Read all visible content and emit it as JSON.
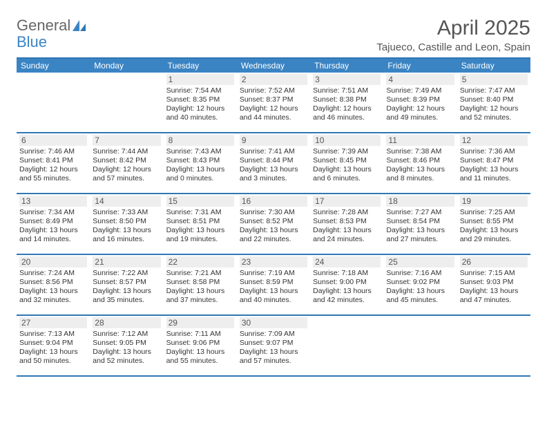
{
  "logo": {
    "text_gray": "General",
    "text_blue": "Blue"
  },
  "title": "April 2025",
  "location": "Tajueco, Castille and Leon, Spain",
  "colors": {
    "header_bg": "#3b84c4",
    "header_border": "#2f76b5",
    "daynum_bg": "#eeeeee",
    "text": "#333333",
    "title_text": "#555555"
  },
  "weekdays": [
    "Sunday",
    "Monday",
    "Tuesday",
    "Wednesday",
    "Thursday",
    "Friday",
    "Saturday"
  ],
  "weeks": [
    [
      null,
      null,
      {
        "d": "1",
        "sr": "7:54 AM",
        "ss": "8:35 PM",
        "dl": "12 hours and 40 minutes."
      },
      {
        "d": "2",
        "sr": "7:52 AM",
        "ss": "8:37 PM",
        "dl": "12 hours and 44 minutes."
      },
      {
        "d": "3",
        "sr": "7:51 AM",
        "ss": "8:38 PM",
        "dl": "12 hours and 46 minutes."
      },
      {
        "d": "4",
        "sr": "7:49 AM",
        "ss": "8:39 PM",
        "dl": "12 hours and 49 minutes."
      },
      {
        "d": "5",
        "sr": "7:47 AM",
        "ss": "8:40 PM",
        "dl": "12 hours and 52 minutes."
      }
    ],
    [
      {
        "d": "6",
        "sr": "7:46 AM",
        "ss": "8:41 PM",
        "dl": "12 hours and 55 minutes."
      },
      {
        "d": "7",
        "sr": "7:44 AM",
        "ss": "8:42 PM",
        "dl": "12 hours and 57 minutes."
      },
      {
        "d": "8",
        "sr": "7:43 AM",
        "ss": "8:43 PM",
        "dl": "13 hours and 0 minutes."
      },
      {
        "d": "9",
        "sr": "7:41 AM",
        "ss": "8:44 PM",
        "dl": "13 hours and 3 minutes."
      },
      {
        "d": "10",
        "sr": "7:39 AM",
        "ss": "8:45 PM",
        "dl": "13 hours and 6 minutes."
      },
      {
        "d": "11",
        "sr": "7:38 AM",
        "ss": "8:46 PM",
        "dl": "13 hours and 8 minutes."
      },
      {
        "d": "12",
        "sr": "7:36 AM",
        "ss": "8:47 PM",
        "dl": "13 hours and 11 minutes."
      }
    ],
    [
      {
        "d": "13",
        "sr": "7:34 AM",
        "ss": "8:49 PM",
        "dl": "13 hours and 14 minutes."
      },
      {
        "d": "14",
        "sr": "7:33 AM",
        "ss": "8:50 PM",
        "dl": "13 hours and 16 minutes."
      },
      {
        "d": "15",
        "sr": "7:31 AM",
        "ss": "8:51 PM",
        "dl": "13 hours and 19 minutes."
      },
      {
        "d": "16",
        "sr": "7:30 AM",
        "ss": "8:52 PM",
        "dl": "13 hours and 22 minutes."
      },
      {
        "d": "17",
        "sr": "7:28 AM",
        "ss": "8:53 PM",
        "dl": "13 hours and 24 minutes."
      },
      {
        "d": "18",
        "sr": "7:27 AM",
        "ss": "8:54 PM",
        "dl": "13 hours and 27 minutes."
      },
      {
        "d": "19",
        "sr": "7:25 AM",
        "ss": "8:55 PM",
        "dl": "13 hours and 29 minutes."
      }
    ],
    [
      {
        "d": "20",
        "sr": "7:24 AM",
        "ss": "8:56 PM",
        "dl": "13 hours and 32 minutes."
      },
      {
        "d": "21",
        "sr": "7:22 AM",
        "ss": "8:57 PM",
        "dl": "13 hours and 35 minutes."
      },
      {
        "d": "22",
        "sr": "7:21 AM",
        "ss": "8:58 PM",
        "dl": "13 hours and 37 minutes."
      },
      {
        "d": "23",
        "sr": "7:19 AM",
        "ss": "8:59 PM",
        "dl": "13 hours and 40 minutes."
      },
      {
        "d": "24",
        "sr": "7:18 AM",
        "ss": "9:00 PM",
        "dl": "13 hours and 42 minutes."
      },
      {
        "d": "25",
        "sr": "7:16 AM",
        "ss": "9:02 PM",
        "dl": "13 hours and 45 minutes."
      },
      {
        "d": "26",
        "sr": "7:15 AM",
        "ss": "9:03 PM",
        "dl": "13 hours and 47 minutes."
      }
    ],
    [
      {
        "d": "27",
        "sr": "7:13 AM",
        "ss": "9:04 PM",
        "dl": "13 hours and 50 minutes."
      },
      {
        "d": "28",
        "sr": "7:12 AM",
        "ss": "9:05 PM",
        "dl": "13 hours and 52 minutes."
      },
      {
        "d": "29",
        "sr": "7:11 AM",
        "ss": "9:06 PM",
        "dl": "13 hours and 55 minutes."
      },
      {
        "d": "30",
        "sr": "7:09 AM",
        "ss": "9:07 PM",
        "dl": "13 hours and 57 minutes."
      },
      null,
      null,
      null
    ]
  ],
  "labels": {
    "sunrise": "Sunrise:",
    "sunset": "Sunset:",
    "daylight": "Daylight:"
  }
}
